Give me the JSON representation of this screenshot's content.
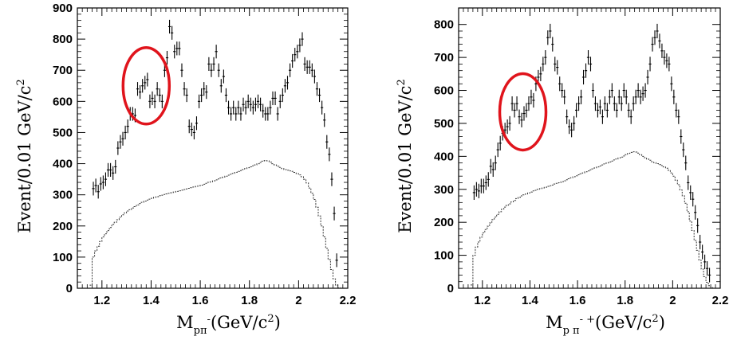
{
  "chart_data": [
    {
      "type": "scatter",
      "panel": "left",
      "xlabel": "M",
      "xlabel_sub": "pπ",
      "xlabel_sup": "-",
      "xlabel_unit_pre": "(GeV/c",
      "xlabel_unit_exp": "2",
      "xlabel_unit_post": ")",
      "ylabel": "Event/0.01 GeV/c",
      "ylabel_exp": "2",
      "xlim": [
        1.1,
        2.2
      ],
      "ylim": [
        0,
        900
      ],
      "xticks": [
        1.2,
        1.4,
        1.6,
        1.8,
        2.0,
        2.2
      ],
      "xtick_labels": [
        "1.2",
        "1.4",
        "1.6",
        "1.8",
        "2",
        "2.2"
      ],
      "yticks": [
        0,
        100,
        200,
        300,
        400,
        500,
        600,
        700,
        800,
        900
      ],
      "ytick_labels": [
        "0",
        "100",
        "200",
        "300",
        "400",
        "500",
        "600",
        "700",
        "800",
        "900"
      ],
      "highlight": {
        "x_center": 1.38,
        "y_center": 650,
        "color": "#e0141c"
      },
      "series": [
        {
          "kind": "data-points-with-errors",
          "x": [
            1.165,
            1.175,
            1.185,
            1.195,
            1.205,
            1.215,
            1.225,
            1.235,
            1.245,
            1.255,
            1.265,
            1.275,
            1.285,
            1.295,
            1.305,
            1.315,
            1.325,
            1.335,
            1.345,
            1.355,
            1.365,
            1.375,
            1.385,
            1.395,
            1.405,
            1.415,
            1.425,
            1.435,
            1.445,
            1.455,
            1.465,
            1.475,
            1.485,
            1.495,
            1.505,
            1.515,
            1.525,
            1.535,
            1.545,
            1.555,
            1.565,
            1.575,
            1.585,
            1.595,
            1.605,
            1.615,
            1.625,
            1.635,
            1.645,
            1.655,
            1.665,
            1.675,
            1.685,
            1.695,
            1.705,
            1.715,
            1.725,
            1.735,
            1.745,
            1.755,
            1.765,
            1.775,
            1.785,
            1.795,
            1.805,
            1.815,
            1.825,
            1.835,
            1.845,
            1.855,
            1.865,
            1.875,
            1.885,
            1.895,
            1.905,
            1.915,
            1.925,
            1.935,
            1.945,
            1.955,
            1.965,
            1.975,
            1.985,
            1.995,
            2.005,
            2.015,
            2.025,
            2.035,
            2.045,
            2.055,
            2.065,
            2.075,
            2.085,
            2.095,
            2.105,
            2.115,
            2.125,
            2.135,
            2.145,
            2.155
          ],
          "y": [
            320,
            330,
            310,
            335,
            340,
            350,
            380,
            380,
            370,
            390,
            450,
            470,
            480,
            500,
            520,
            560,
            560,
            555,
            640,
            630,
            650,
            660,
            670,
            600,
            610,
            600,
            640,
            620,
            600,
            700,
            740,
            840,
            820,
            760,
            770,
            770,
            700,
            640,
            620,
            520,
            510,
            500,
            530,
            600,
            620,
            640,
            630,
            720,
            700,
            720,
            760,
            700,
            650,
            680,
            620,
            580,
            560,
            580,
            560,
            580,
            560,
            590,
            580,
            600,
            590,
            580,
            590,
            600,
            590,
            570,
            560,
            560,
            580,
            610,
            610,
            560,
            600,
            620,
            650,
            660,
            700,
            730,
            750,
            760,
            780,
            800,
            720,
            710,
            710,
            700,
            680,
            640,
            620,
            580,
            540,
            470,
            430,
            350,
            240,
            90
          ],
          "err": 22
        },
        {
          "kind": "background-histogram",
          "x": [
            1.15,
            1.16,
            1.17,
            1.18,
            1.19,
            1.2,
            1.21,
            1.22,
            1.23,
            1.24,
            1.25,
            1.26,
            1.27,
            1.28,
            1.29,
            1.3,
            1.31,
            1.32,
            1.33,
            1.34,
            1.35,
            1.36,
            1.37,
            1.38,
            1.39,
            1.4,
            1.41,
            1.42,
            1.43,
            1.44,
            1.45,
            1.46,
            1.47,
            1.48,
            1.49,
            1.5,
            1.51,
            1.52,
            1.53,
            1.54,
            1.55,
            1.56,
            1.57,
            1.58,
            1.59,
            1.6,
            1.61,
            1.62,
            1.63,
            1.64,
            1.65,
            1.66,
            1.67,
            1.68,
            1.69,
            1.7,
            1.71,
            1.72,
            1.73,
            1.74,
            1.75,
            1.76,
            1.77,
            1.78,
            1.79,
            1.8,
            1.81,
            1.82,
            1.83,
            1.84,
            1.85,
            1.86,
            1.87,
            1.88,
            1.89,
            1.9,
            1.91,
            1.92,
            1.93,
            1.94,
            1.95,
            1.96,
            1.97,
            1.98,
            1.99,
            2.0,
            2.01,
            2.02,
            2.03,
            2.04,
            2.05,
            2.06,
            2.07,
            2.08,
            2.09,
            2.1,
            2.11,
            2.12,
            2.13,
            2.14,
            2.15,
            2.16
          ],
          "y": [
            10,
            100,
            120,
            135,
            150,
            165,
            175,
            185,
            195,
            205,
            212,
            220,
            228,
            236,
            242,
            248,
            252,
            258,
            262,
            268,
            272,
            276,
            280,
            283,
            286,
            289,
            292,
            294,
            297,
            299,
            301,
            303,
            305,
            307,
            309,
            311,
            313,
            315,
            317,
            319,
            321,
            323,
            325,
            327,
            329,
            331,
            334,
            337,
            340,
            342,
            345,
            348,
            351,
            354,
            357,
            360,
            363,
            366,
            369,
            372,
            375,
            378,
            381,
            384,
            387,
            390,
            393,
            396,
            400,
            404,
            408,
            410,
            409,
            405,
            400,
            396,
            392,
            388,
            384,
            381,
            379,
            377,
            375,
            372,
            368,
            364,
            358,
            350,
            338,
            322,
            305,
            285,
            260,
            232,
            200,
            165,
            128,
            92,
            60,
            30,
            10,
            2
          ],
          "style": "dashed-step"
        }
      ]
    },
    {
      "type": "scatter",
      "panel": "right",
      "xlabel": "M",
      "xlabel_sub": "p π",
      "xlabel_sup": "- +",
      "xlabel_unit_pre": "(GeV/c",
      "xlabel_unit_exp": "2",
      "xlabel_unit_post": ")",
      "ylabel": "Event/0.01 GeV/c",
      "ylabel_exp": "2",
      "xlim": [
        1.1,
        2.2
      ],
      "ylim": [
        0,
        850
      ],
      "xticks": [
        1.2,
        1.4,
        1.6,
        1.8,
        2.0,
        2.2
      ],
      "xtick_labels": [
        "1.2",
        "1.4",
        "1.6",
        "1.8",
        "2",
        "2.2"
      ],
      "yticks": [
        0,
        100,
        200,
        300,
        400,
        500,
        600,
        700,
        800
      ],
      "ytick_labels": [
        "0",
        "100",
        "200",
        "300",
        "400",
        "500",
        "600",
        "700",
        "800"
      ],
      "highlight": {
        "x_center": 1.37,
        "y_center": 535,
        "color": "#e0141c"
      },
      "series": [
        {
          "kind": "data-points-with-errors",
          "x": [
            1.165,
            1.175,
            1.185,
            1.195,
            1.205,
            1.215,
            1.225,
            1.235,
            1.245,
            1.255,
            1.265,
            1.275,
            1.285,
            1.295,
            1.305,
            1.315,
            1.325,
            1.335,
            1.345,
            1.355,
            1.365,
            1.375,
            1.385,
            1.395,
            1.405,
            1.415,
            1.425,
            1.435,
            1.445,
            1.455,
            1.465,
            1.475,
            1.485,
            1.495,
            1.505,
            1.515,
            1.525,
            1.535,
            1.545,
            1.555,
            1.565,
            1.575,
            1.585,
            1.595,
            1.605,
            1.615,
            1.625,
            1.635,
            1.645,
            1.655,
            1.665,
            1.675,
            1.685,
            1.695,
            1.705,
            1.715,
            1.725,
            1.735,
            1.745,
            1.755,
            1.765,
            1.775,
            1.785,
            1.795,
            1.805,
            1.815,
            1.825,
            1.835,
            1.845,
            1.855,
            1.865,
            1.875,
            1.885,
            1.895,
            1.905,
            1.915,
            1.925,
            1.935,
            1.945,
            1.955,
            1.965,
            1.975,
            1.985,
            1.995,
            2.005,
            2.015,
            2.025,
            2.035,
            2.045,
            2.055,
            2.065,
            2.075,
            2.085,
            2.095,
            2.105,
            2.115,
            2.125,
            2.135,
            2.145,
            2.155
          ],
          "y": [
            290,
            300,
            295,
            310,
            310,
            320,
            330,
            370,
            360,
            380,
            420,
            440,
            470,
            480,
            490,
            500,
            560,
            540,
            560,
            520,
            510,
            530,
            540,
            560,
            580,
            570,
            620,
            640,
            650,
            680,
            700,
            760,
            780,
            740,
            680,
            670,
            620,
            600,
            580,
            520,
            490,
            480,
            500,
            540,
            560,
            580,
            640,
            660,
            700,
            680,
            600,
            560,
            540,
            550,
            520,
            560,
            540,
            580,
            600,
            560,
            540,
            580,
            560,
            600,
            580,
            540,
            520,
            560,
            580,
            600,
            580,
            590,
            600,
            640,
            680,
            740,
            760,
            780,
            750,
            720,
            700,
            690,
            680,
            620,
            580,
            540,
            520,
            460,
            420,
            380,
            320,
            290,
            270,
            230,
            190,
            140,
            110,
            80,
            60,
            40
          ],
          "err": 22
        },
        {
          "kind": "background-histogram",
          "x": [
            1.15,
            1.16,
            1.17,
            1.18,
            1.19,
            1.2,
            1.21,
            1.22,
            1.23,
            1.24,
            1.25,
            1.26,
            1.27,
            1.28,
            1.29,
            1.3,
            1.31,
            1.32,
            1.33,
            1.34,
            1.35,
            1.36,
            1.37,
            1.38,
            1.39,
            1.4,
            1.41,
            1.42,
            1.43,
            1.44,
            1.45,
            1.46,
            1.47,
            1.48,
            1.49,
            1.5,
            1.51,
            1.52,
            1.53,
            1.54,
            1.55,
            1.56,
            1.57,
            1.58,
            1.59,
            1.6,
            1.61,
            1.62,
            1.63,
            1.64,
            1.65,
            1.66,
            1.67,
            1.68,
            1.69,
            1.7,
            1.71,
            1.72,
            1.73,
            1.74,
            1.75,
            1.76,
            1.77,
            1.78,
            1.79,
            1.8,
            1.81,
            1.82,
            1.83,
            1.84,
            1.85,
            1.86,
            1.87,
            1.88,
            1.89,
            1.9,
            1.91,
            1.92,
            1.93,
            1.94,
            1.95,
            1.96,
            1.97,
            1.98,
            1.99,
            2.0,
            2.01,
            2.02,
            2.03,
            2.04,
            2.05,
            2.06,
            2.07,
            2.08,
            2.09,
            2.1,
            2.11,
            2.12,
            2.13,
            2.14,
            2.15,
            2.16
          ],
          "y": [
            10,
            100,
            125,
            140,
            155,
            168,
            178,
            188,
            198,
            208,
            216,
            224,
            232,
            240,
            246,
            252,
            256,
            262,
            266,
            272,
            276,
            280,
            283,
            286,
            289,
            292,
            295,
            297,
            300,
            302,
            304,
            306,
            309,
            311,
            313,
            316,
            318,
            320,
            323,
            326,
            329,
            332,
            335,
            338,
            341,
            344,
            347,
            350,
            353,
            356,
            359,
            362,
            365,
            368,
            371,
            374,
            377,
            380,
            383,
            386,
            389,
            392,
            395,
            398,
            401,
            405,
            409,
            412,
            414,
            413,
            410,
            405,
            400,
            396,
            392,
            388,
            384,
            381,
            378,
            375,
            372,
            368,
            364,
            358,
            350,
            340,
            328,
            314,
            298,
            280,
            258,
            232,
            204,
            175,
            145,
            115,
            85,
            58,
            35,
            18,
            8,
            2
          ],
          "style": "dashed-step"
        }
      ]
    }
  ]
}
